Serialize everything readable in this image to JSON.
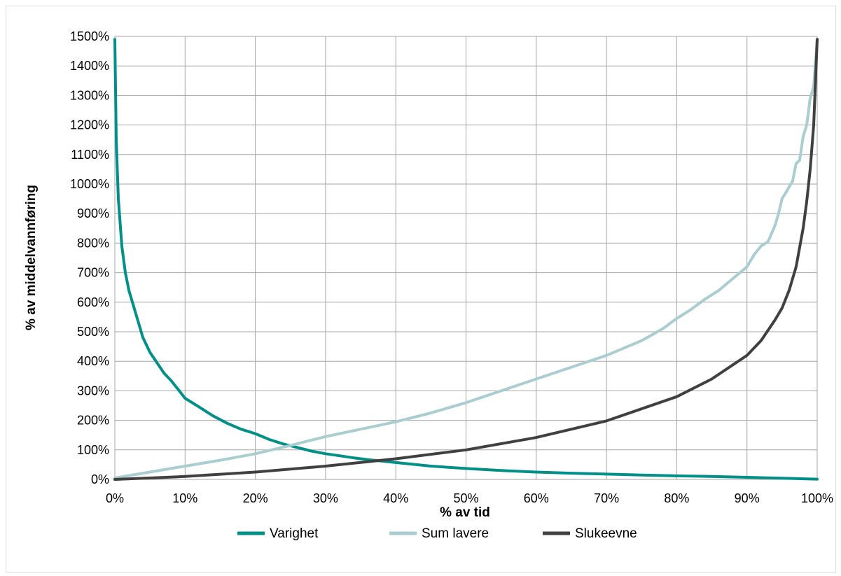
{
  "chart_data": {
    "type": "line",
    "title": "",
    "xlabel": "% av tid",
    "ylabel": "% av middelvannføring",
    "xlim": [
      0,
      100
    ],
    "ylim": [
      0,
      1500
    ],
    "x_ticks": [
      "0%",
      "10%",
      "20%",
      "30%",
      "40%",
      "50%",
      "60%",
      "70%",
      "80%",
      "90%",
      "100%"
    ],
    "y_ticks": [
      "0%",
      "100%",
      "200%",
      "300%",
      "400%",
      "500%",
      "600%",
      "700%",
      "800%",
      "900%",
      "1000%",
      "1100%",
      "1200%",
      "1300%",
      "1400%",
      "1500%"
    ],
    "grid": true,
    "legend_position": "bottom",
    "series": [
      {
        "name": "Varighet",
        "color": "#009088",
        "x": [
          0,
          0.2,
          0.5,
          1,
          1.5,
          2,
          3,
          4,
          5,
          6,
          7,
          8,
          9,
          10,
          12,
          14,
          16,
          18,
          20,
          22,
          24,
          26,
          28,
          30,
          32,
          34,
          36,
          38,
          40,
          45,
          50,
          55,
          60,
          65,
          70,
          75,
          80,
          85,
          90,
          95,
          100
        ],
        "y": [
          1490,
          1150,
          950,
          790,
          700,
          640,
          560,
          480,
          430,
          395,
          360,
          335,
          305,
          275,
          245,
          215,
          190,
          170,
          155,
          135,
          120,
          108,
          96,
          87,
          80,
          73,
          67,
          62,
          57,
          45,
          37,
          30,
          25,
          21,
          18,
          15,
          12,
          10,
          7,
          4,
          1
        ]
      },
      {
        "name": "Sum lavere",
        "color": "#a9cdd0",
        "x": [
          0,
          5,
          10,
          15,
          20,
          25,
          30,
          35,
          40,
          45,
          50,
          55,
          60,
          65,
          70,
          75,
          78,
          80,
          82,
          84,
          86,
          88,
          90,
          91,
          92,
          93,
          94,
          94.5,
          95,
          95.5,
          96,
          96.5,
          97,
          97.5,
          98,
          98.5,
          99,
          99.5,
          100
        ],
        "y": [
          5,
          25,
          45,
          65,
          87,
          115,
          145,
          170,
          195,
          225,
          260,
          300,
          340,
          380,
          420,
          470,
          510,
          545,
          575,
          610,
          640,
          680,
          720,
          760,
          790,
          805,
          860,
          900,
          950,
          970,
          990,
          1010,
          1070,
          1080,
          1160,
          1200,
          1290,
          1330,
          1490
        ]
      },
      {
        "name": "Slukeevne",
        "color": "#404040",
        "x": [
          0,
          10,
          20,
          30,
          40,
          50,
          60,
          70,
          80,
          85,
          90,
          92,
          94,
          95,
          96,
          97,
          98,
          98.5,
          99,
          99.5,
          100
        ],
        "y": [
          0,
          10,
          25,
          45,
          70,
          100,
          142,
          198,
          280,
          340,
          420,
          470,
          540,
          580,
          640,
          720,
          850,
          940,
          1050,
          1200,
          1490
        ]
      }
    ]
  }
}
